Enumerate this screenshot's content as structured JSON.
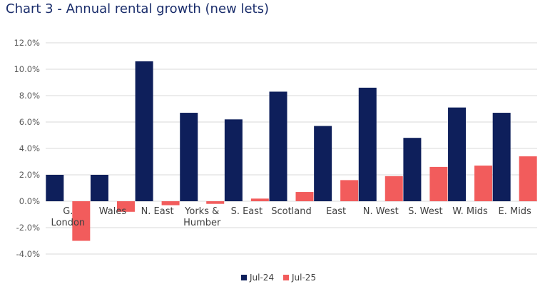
{
  "chart_data": {
    "type": "bar",
    "title": "Chart 3 - Annual rental growth (new lets)",
    "categories": [
      [
        "G.",
        "London"
      ],
      [
        "Wales"
      ],
      [
        "N. East"
      ],
      [
        "Yorks &",
        "Humber"
      ],
      [
        "S. East"
      ],
      [
        "Scotland"
      ],
      [
        "East"
      ],
      [
        "N. West"
      ],
      [
        "S. West"
      ],
      [
        "W. Mids"
      ],
      [
        "E. Mids"
      ]
    ],
    "series": [
      {
        "name": "Jul-24",
        "color": "#0e1f5b",
        "values": [
          2.0,
          2.0,
          10.6,
          6.7,
          6.2,
          8.3,
          5.7,
          8.6,
          4.8,
          7.1,
          6.7
        ]
      },
      {
        "name": "Jul-25",
        "color": "#f25c5c",
        "values": [
          -3.0,
          -0.8,
          -0.3,
          -0.2,
          0.2,
          0.7,
          1.6,
          1.9,
          2.6,
          2.7,
          3.4
        ]
      }
    ],
    "yticks": [
      "-4.0%",
      "-2.0%",
      "0.0%",
      "2.0%",
      "4.0%",
      "6.0%",
      "8.0%",
      "10.0%",
      "12.0%"
    ],
    "ylim": [
      -4,
      12
    ],
    "grid": true,
    "legend": "bottom"
  }
}
